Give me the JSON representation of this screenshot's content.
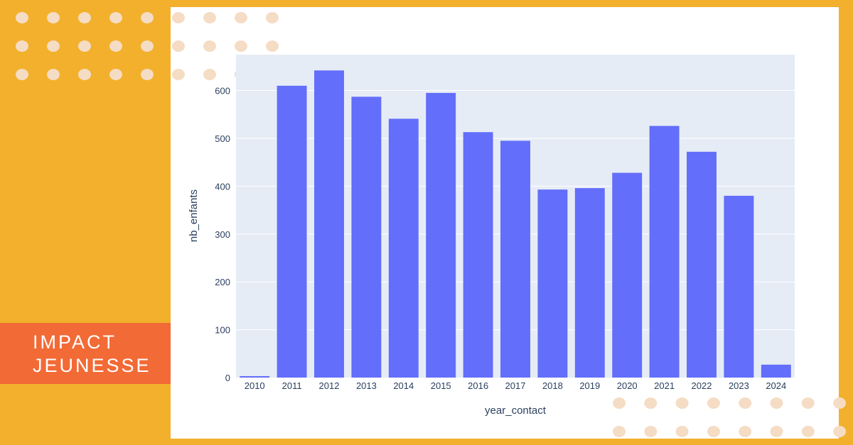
{
  "brand": {
    "line1": "IMPACT",
    "line2": "JEUNESSE",
    "background": "#f26a36"
  },
  "colors": {
    "page_background": "#f2b02c",
    "panel": "#ffffff",
    "plot_background": "#e5ecf6",
    "bar": "#636efa",
    "dot": "#f5dcc4"
  },
  "chart_data": {
    "type": "bar",
    "categories": [
      "2010",
      "2011",
      "2012",
      "2013",
      "2014",
      "2015",
      "2016",
      "2017",
      "2018",
      "2019",
      "2020",
      "2021",
      "2022",
      "2023",
      "2024"
    ],
    "values": [
      3,
      610,
      642,
      587,
      541,
      595,
      513,
      495,
      393,
      396,
      428,
      526,
      472,
      380,
      27
    ],
    "xlabel": "year_contact",
    "ylabel": "nb_enfants",
    "ylim": [
      0,
      675
    ],
    "yticks": [
      0,
      100,
      200,
      300,
      400,
      500,
      600
    ],
    "grid": true,
    "legend": "none"
  }
}
